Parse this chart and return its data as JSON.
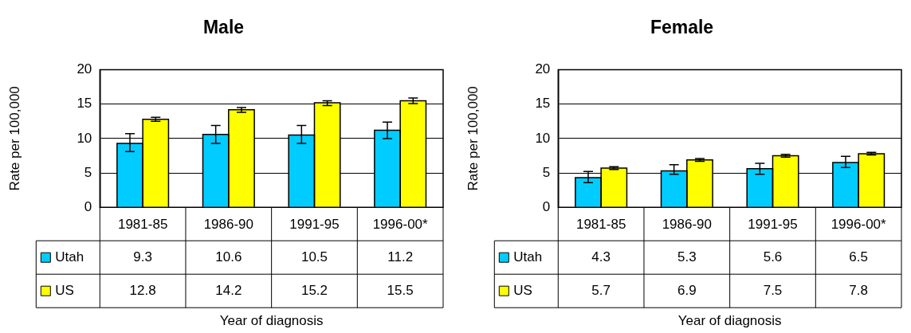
{
  "chart_data": [
    {
      "type": "bar",
      "title": "Male",
      "legend": "bottom left",
      "xlabel": "Year of diagnosis",
      "ylabel": "Rate per 100,000",
      "categories": [
        "1981-85",
        "1986-90",
        "1991-95",
        "1996-00*"
      ],
      "ylim": [
        0,
        20
      ],
      "yticks": [
        0,
        5,
        10,
        15,
        20
      ],
      "grid": "y",
      "data_labels": true,
      "series": [
        {
          "name": "Utah",
          "color": "#00ccff",
          "values": [
            9.3,
            10.6,
            10.5,
            11.2
          ],
          "errors": [
            [
              8.1,
              10.7
            ],
            [
              9.3,
              11.9
            ],
            [
              9.3,
              11.9
            ],
            [
              10.0,
              12.4
            ]
          ]
        },
        {
          "name": "US",
          "color": "#ffff00",
          "values": [
            12.8,
            14.2,
            15.2,
            15.5
          ],
          "errors": [
            [
              12.5,
              13.1
            ],
            [
              13.8,
              14.5
            ],
            [
              14.8,
              15.5
            ],
            [
              15.1,
              15.9
            ]
          ]
        }
      ]
    },
    {
      "type": "bar",
      "title": "Female",
      "legend": "bottom left",
      "xlabel": "Year of diagnosis",
      "ylabel": "Rate per 100,000",
      "categories": [
        "1981-85",
        "1986-90",
        "1991-95",
        "1996-00*"
      ],
      "ylim": [
        0,
        20
      ],
      "yticks": [
        0,
        5,
        10,
        15,
        20
      ],
      "grid": "y",
      "data_labels": true,
      "series": [
        {
          "name": "Utah",
          "color": "#00ccff",
          "values": [
            4.3,
            5.3,
            5.6,
            6.5
          ],
          "errors": [
            [
              3.6,
              5.2
            ],
            [
              4.8,
              6.2
            ],
            [
              4.8,
              6.4
            ],
            [
              5.8,
              7.4
            ]
          ]
        },
        {
          "name": "US",
          "color": "#ffff00",
          "values": [
            5.7,
            6.9,
            7.5,
            7.8
          ],
          "errors": [
            [
              5.5,
              5.9
            ],
            [
              6.7,
              7.1
            ],
            [
              7.3,
              7.7
            ],
            [
              7.6,
              8.0
            ]
          ]
        }
      ]
    }
  ]
}
